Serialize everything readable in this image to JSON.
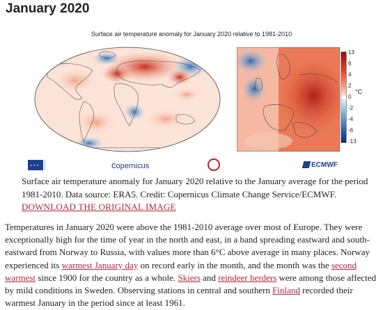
{
  "page": {
    "title": "January 2020"
  },
  "figure": {
    "map_title": "Surface air temperature anomaly for January 2020 relative to 1981-2010",
    "colorbar": {
      "unit": "°C",
      "ticks": [
        "13",
        "6",
        "4",
        "2",
        "0",
        "-2",
        "-4",
        "-6",
        "-13"
      ]
    },
    "logos": {
      "copernicus": "opernicus",
      "ecmwf": "ECMWF"
    }
  },
  "caption": {
    "text": "Surface air temperature anomaly for January 2020 relative to the January average for the period 1981-2010. Data source: ERA5. Credit: Copernicus Climate Change Service/ECMWF.",
    "download_link": "DOWNLOAD THE ORIGINAL IMAGE"
  },
  "body": {
    "s1": "Temperatures in January 2020 were above the 1981-2010 average over most of Europe. They were exceptionally high for the time of year in the north and east, in a band spreading eastward and south-eastward from Norway to Russia, with values more than 6°C above average in many places. Norway experienced its ",
    "link1": "warmest January day",
    "s2": " on record early in the month, and the month was the ",
    "link2": "second warmest",
    "s3": " since 1900 for the country as a whole. ",
    "link3": "Skiers",
    "s4": " and ",
    "link4": "reindeer herders",
    "s5": " were among those affected by mild conditions in Sweden.  Observing stations in central and southern ",
    "link5": "Finland",
    "s6": " recorded their warmest January in the period since at least 1961."
  }
}
